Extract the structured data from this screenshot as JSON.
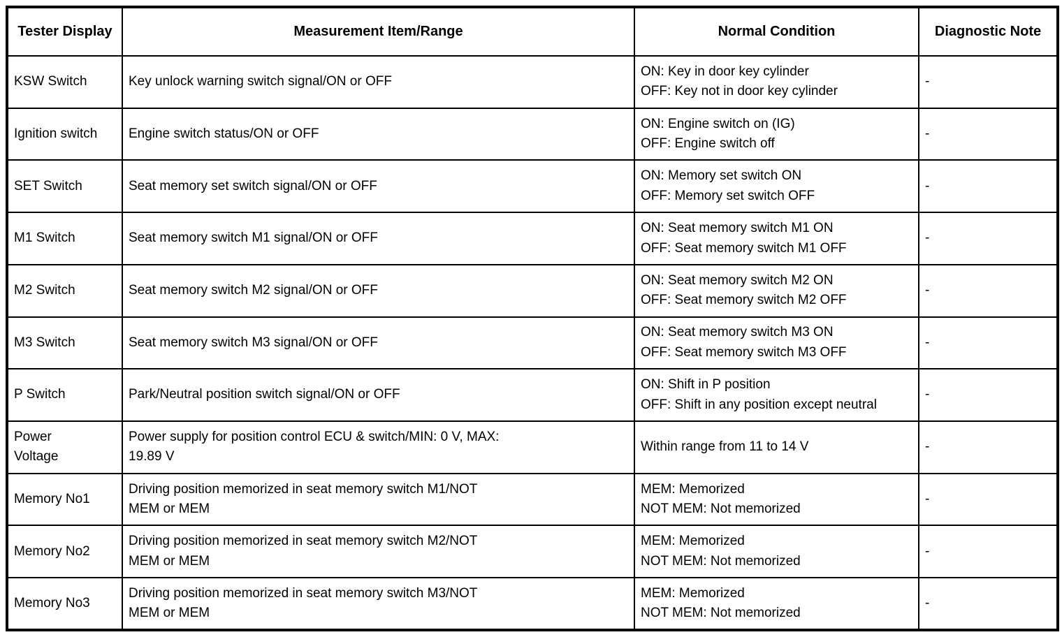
{
  "table": {
    "headers": [
      "Tester\nDisplay",
      "Measurement Item/Range",
      "Normal Condition",
      "Diagnostic\nNote"
    ],
    "rows": [
      {
        "display": [
          "KSW Switch"
        ],
        "measurement": [
          "Key unlock warning switch signal/ON or OFF"
        ],
        "condition": [
          "ON: Key in door key cylinder",
          "OFF: Key not in door key cylinder"
        ],
        "note": "-"
      },
      {
        "display": [
          "Ignition switch"
        ],
        "measurement": [
          "Engine switch status/ON or OFF"
        ],
        "condition": [
          "ON: Engine switch on (IG)",
          "OFF: Engine switch off"
        ],
        "note": "-"
      },
      {
        "display": [
          "SET Switch"
        ],
        "measurement": [
          "Seat memory set switch signal/ON or OFF"
        ],
        "condition": [
          "ON: Memory set switch ON",
          "OFF: Memory set switch OFF"
        ],
        "note": "-"
      },
      {
        "display": [
          "M1 Switch"
        ],
        "measurement": [
          "Seat memory switch M1 signal/ON or OFF"
        ],
        "condition": [
          "ON: Seat memory switch M1 ON",
          "OFF: Seat memory switch M1 OFF"
        ],
        "note": "-"
      },
      {
        "display": [
          "M2 Switch"
        ],
        "measurement": [
          "Seat memory switch M2 signal/ON or OFF"
        ],
        "condition": [
          "ON: Seat memory switch M2 ON",
          "OFF: Seat memory switch M2 OFF"
        ],
        "note": "-"
      },
      {
        "display": [
          "M3 Switch"
        ],
        "measurement": [
          "Seat memory switch M3 signal/ON or OFF"
        ],
        "condition": [
          "ON: Seat memory switch M3 ON",
          "OFF: Seat memory switch M3 OFF"
        ],
        "note": "-"
      },
      {
        "display": [
          "P Switch"
        ],
        "measurement": [
          "Park/Neutral position switch signal/ON or OFF"
        ],
        "condition": [
          "ON: Shift in P position",
          "OFF: Shift in any position except neutral"
        ],
        "note": "-"
      },
      {
        "display": [
          "Power",
          "Voltage"
        ],
        "measurement": [
          "Power supply for position control ECU & switch/MIN: 0 V, MAX:",
          "19.89 V"
        ],
        "condition": [
          "Within range from 11 to 14 V"
        ],
        "note": "-"
      },
      {
        "display": [
          "Memory No1"
        ],
        "measurement": [
          "Driving position memorized in seat memory switch M1/NOT",
          "MEM or MEM"
        ],
        "condition": [
          "MEM: Memorized",
          "NOT MEM: Not memorized"
        ],
        "note": "-"
      },
      {
        "display": [
          "Memory No2"
        ],
        "measurement": [
          "Driving position memorized in seat memory switch M2/NOT",
          "MEM or MEM"
        ],
        "condition": [
          "MEM: Memorized",
          "NOT MEM: Not memorized"
        ],
        "note": "-"
      },
      {
        "display": [
          "Memory No3"
        ],
        "measurement": [
          "Driving position memorized in seat memory switch M3/NOT",
          "MEM or MEM"
        ],
        "condition": [
          "MEM: Memorized",
          "NOT MEM: Not memorized"
        ],
        "note": "-"
      }
    ]
  }
}
